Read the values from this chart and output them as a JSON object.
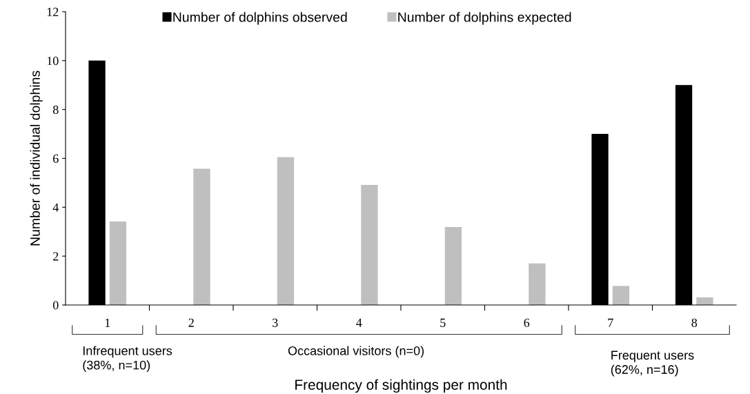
{
  "chart_data": {
    "type": "bar",
    "xlabel": "Frequency of sightings per month",
    "ylabel": "Number of individual dolphins",
    "categories": [
      "1",
      "2",
      "3",
      "4",
      "5",
      "6",
      "7",
      "8"
    ],
    "series": [
      {
        "name": "Number of dolphins observed",
        "color": "#000000",
        "values": [
          10,
          0,
          0,
          0,
          0,
          0,
          7,
          9
        ]
      },
      {
        "name": "Number of dolphins expected",
        "color": "#bfbfbf",
        "values": [
          3.42,
          5.58,
          6.05,
          4.91,
          3.19,
          1.7,
          0.78,
          0.31
        ]
      }
    ],
    "ylim": [
      0,
      12
    ],
    "yticks": [
      0,
      2,
      4,
      6,
      8,
      10,
      12
    ],
    "grid": false,
    "legend": "top",
    "annotations": [
      "Infrequent users\n(38%, n=10)",
      "Occasional visitors (n=0)",
      "Frequent users\n(62%, n=16)"
    ]
  }
}
